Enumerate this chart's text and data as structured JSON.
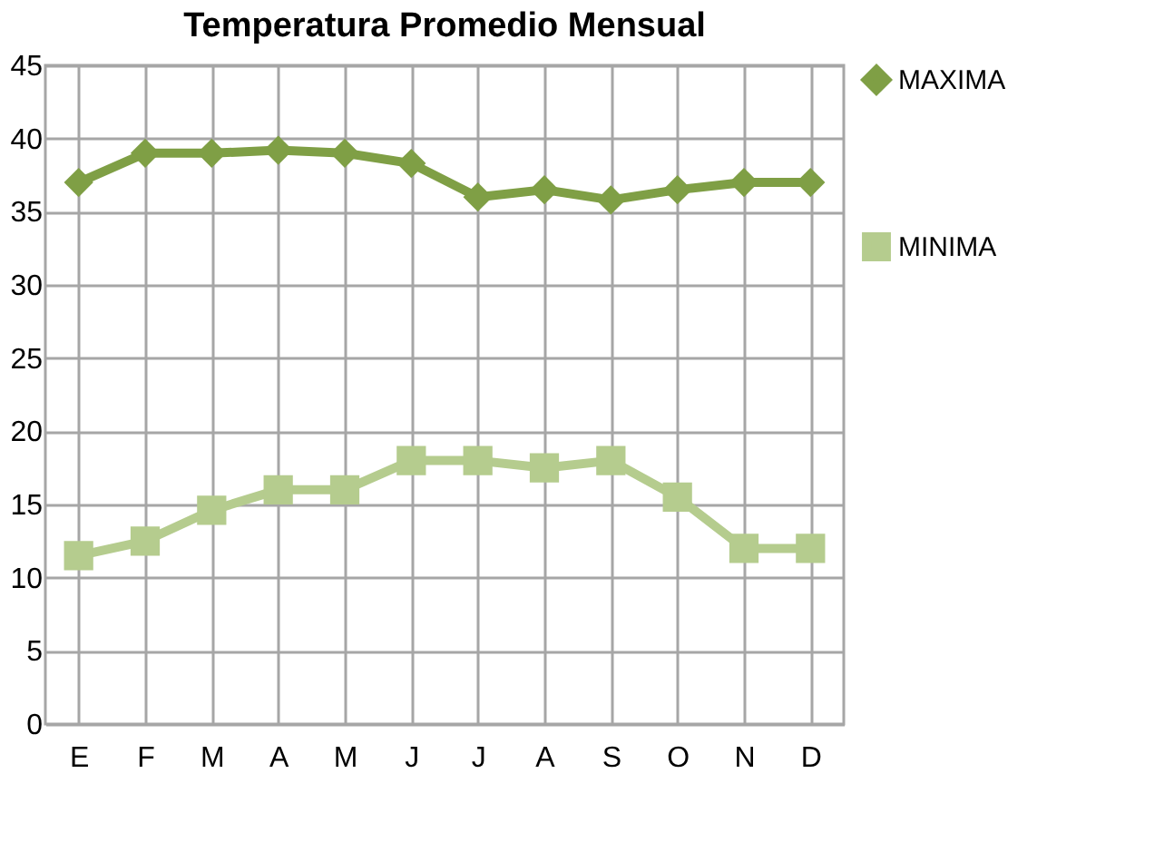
{
  "chart_data": {
    "type": "line",
    "title": "Temperatura  Promedio Mensual",
    "categories": [
      "E",
      "F",
      "M",
      "A",
      "M",
      "J",
      "J",
      "A",
      "S",
      "O",
      "N",
      "D"
    ],
    "series": [
      {
        "name": "MAXIMA",
        "color": "#7f9f45",
        "marker": "diamond",
        "values": [
          37,
          39,
          39,
          39.2,
          39,
          38.3,
          36,
          36.5,
          35.8,
          36.5,
          37,
          37
        ]
      },
      {
        "name": "MINIMA",
        "color": "#b5cc8e",
        "marker": "square",
        "values": [
          11.5,
          12.5,
          14.6,
          16,
          16,
          18,
          18,
          17.5,
          18,
          15.5,
          12,
          12
        ]
      }
    ],
    "ylim": [
      0,
      45
    ],
    "yticks": [
      0,
      5,
      10,
      15,
      20,
      25,
      30,
      35,
      40,
      45
    ],
    "grid": true,
    "legend": "right"
  }
}
